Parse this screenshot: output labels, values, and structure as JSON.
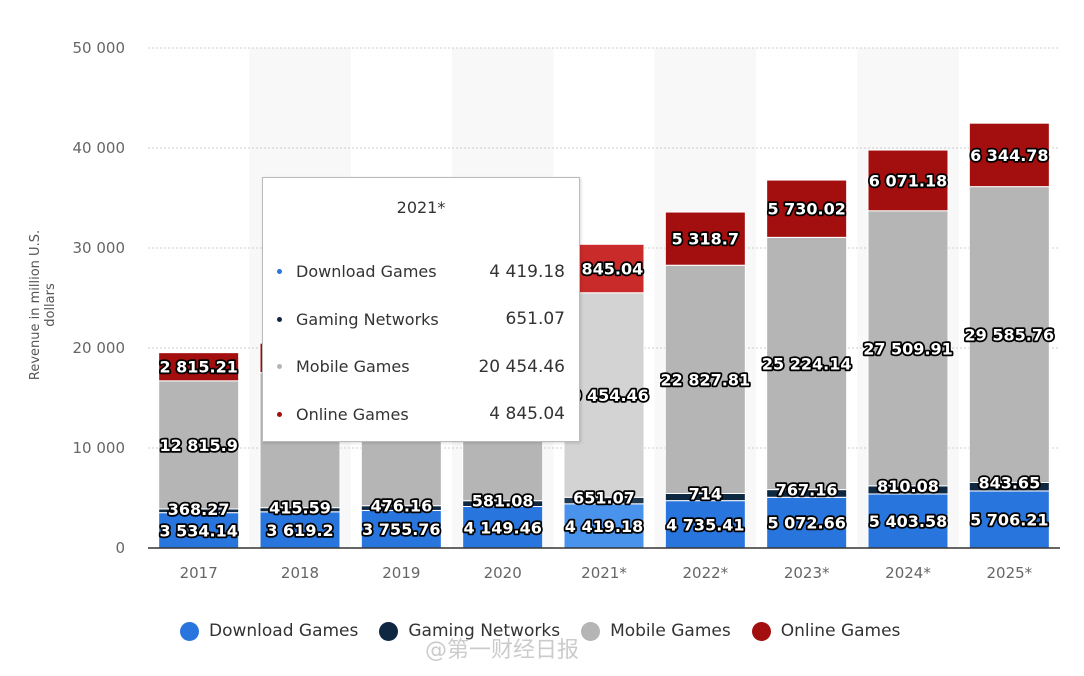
{
  "chart_data": {
    "type": "bar",
    "stacked": true,
    "ylabel": "Revenue in million U.S. dollars",
    "ylim": [
      0,
      50000
    ],
    "yticks": [
      0,
      10000,
      20000,
      30000,
      40000,
      50000
    ],
    "ytick_labels": [
      "0",
      "10 000",
      "20 000",
      "30 000",
      "40 000",
      "50 000"
    ],
    "grid": true,
    "legend_position": "bottom",
    "categories": [
      "2017",
      "2018",
      "2019",
      "2020",
      "2021*",
      "2022*",
      "2023*",
      "2024*",
      "2025*"
    ],
    "series": [
      {
        "name": "Download Games",
        "color": "#2876dd",
        "values": [
          3534.14,
          3619.2,
          3755.76,
          4149.46,
          4419.18,
          4735.41,
          5072.66,
          5403.58,
          5706.21
        ],
        "labels": [
          "3 534.14",
          "3 619.2",
          "3 755.76",
          "4 149.46",
          "4 419.18",
          "4 735.41",
          "5 072.66",
          "5 403.58",
          "5 706.21"
        ]
      },
      {
        "name": "Gaming Networks",
        "color": "#0f2841",
        "values": [
          368.27,
          415.59,
          476.16,
          581.08,
          651.07,
          714,
          767.16,
          810.08,
          843.65
        ],
        "labels": [
          "368.27",
          "415.59",
          "476.16",
          "581.08",
          "651.07",
          "714",
          "767.16",
          "810.08",
          "843.65"
        ]
      },
      {
        "name": "Mobile Games",
        "color": "#b5b5b5",
        "values": [
          12815.9,
          13500,
          15000,
          17500,
          20454.46,
          22827.81,
          25224.14,
          27509.91,
          29585.76
        ],
        "labels": [
          "12 815.9",
          "",
          "",
          "",
          "20 454.46",
          "22 827.81",
          "25 224.14",
          "27 509.91",
          "29 585.76"
        ]
      },
      {
        "name": "Online Games",
        "color": "#a30e0e",
        "values": [
          2815.21,
          2950,
          3100,
          3800,
          4845.04,
          5318.7,
          5730.02,
          6071.18,
          6344.78
        ],
        "labels": [
          "2 815.21",
          "",
          "",
          "",
          "4 845.04",
          "5 318.7",
          "5 730.02",
          "6 071.18",
          "6 344.78"
        ]
      }
    ],
    "highlighted_category": "2021*"
  },
  "tooltip": {
    "title": "2021*",
    "rows": [
      {
        "name": "Download Games",
        "value": "4 419.18",
        "color": "#2876dd"
      },
      {
        "name": "Gaming Networks",
        "value": "651.07",
        "color": "#0f2841"
      },
      {
        "name": "Mobile Games",
        "value": "20 454.46",
        "color": "#b5b5b5"
      },
      {
        "name": "Online Games",
        "value": "4 845.04",
        "color": "#a30e0e"
      }
    ]
  },
  "watermark": "@第一财经日报"
}
